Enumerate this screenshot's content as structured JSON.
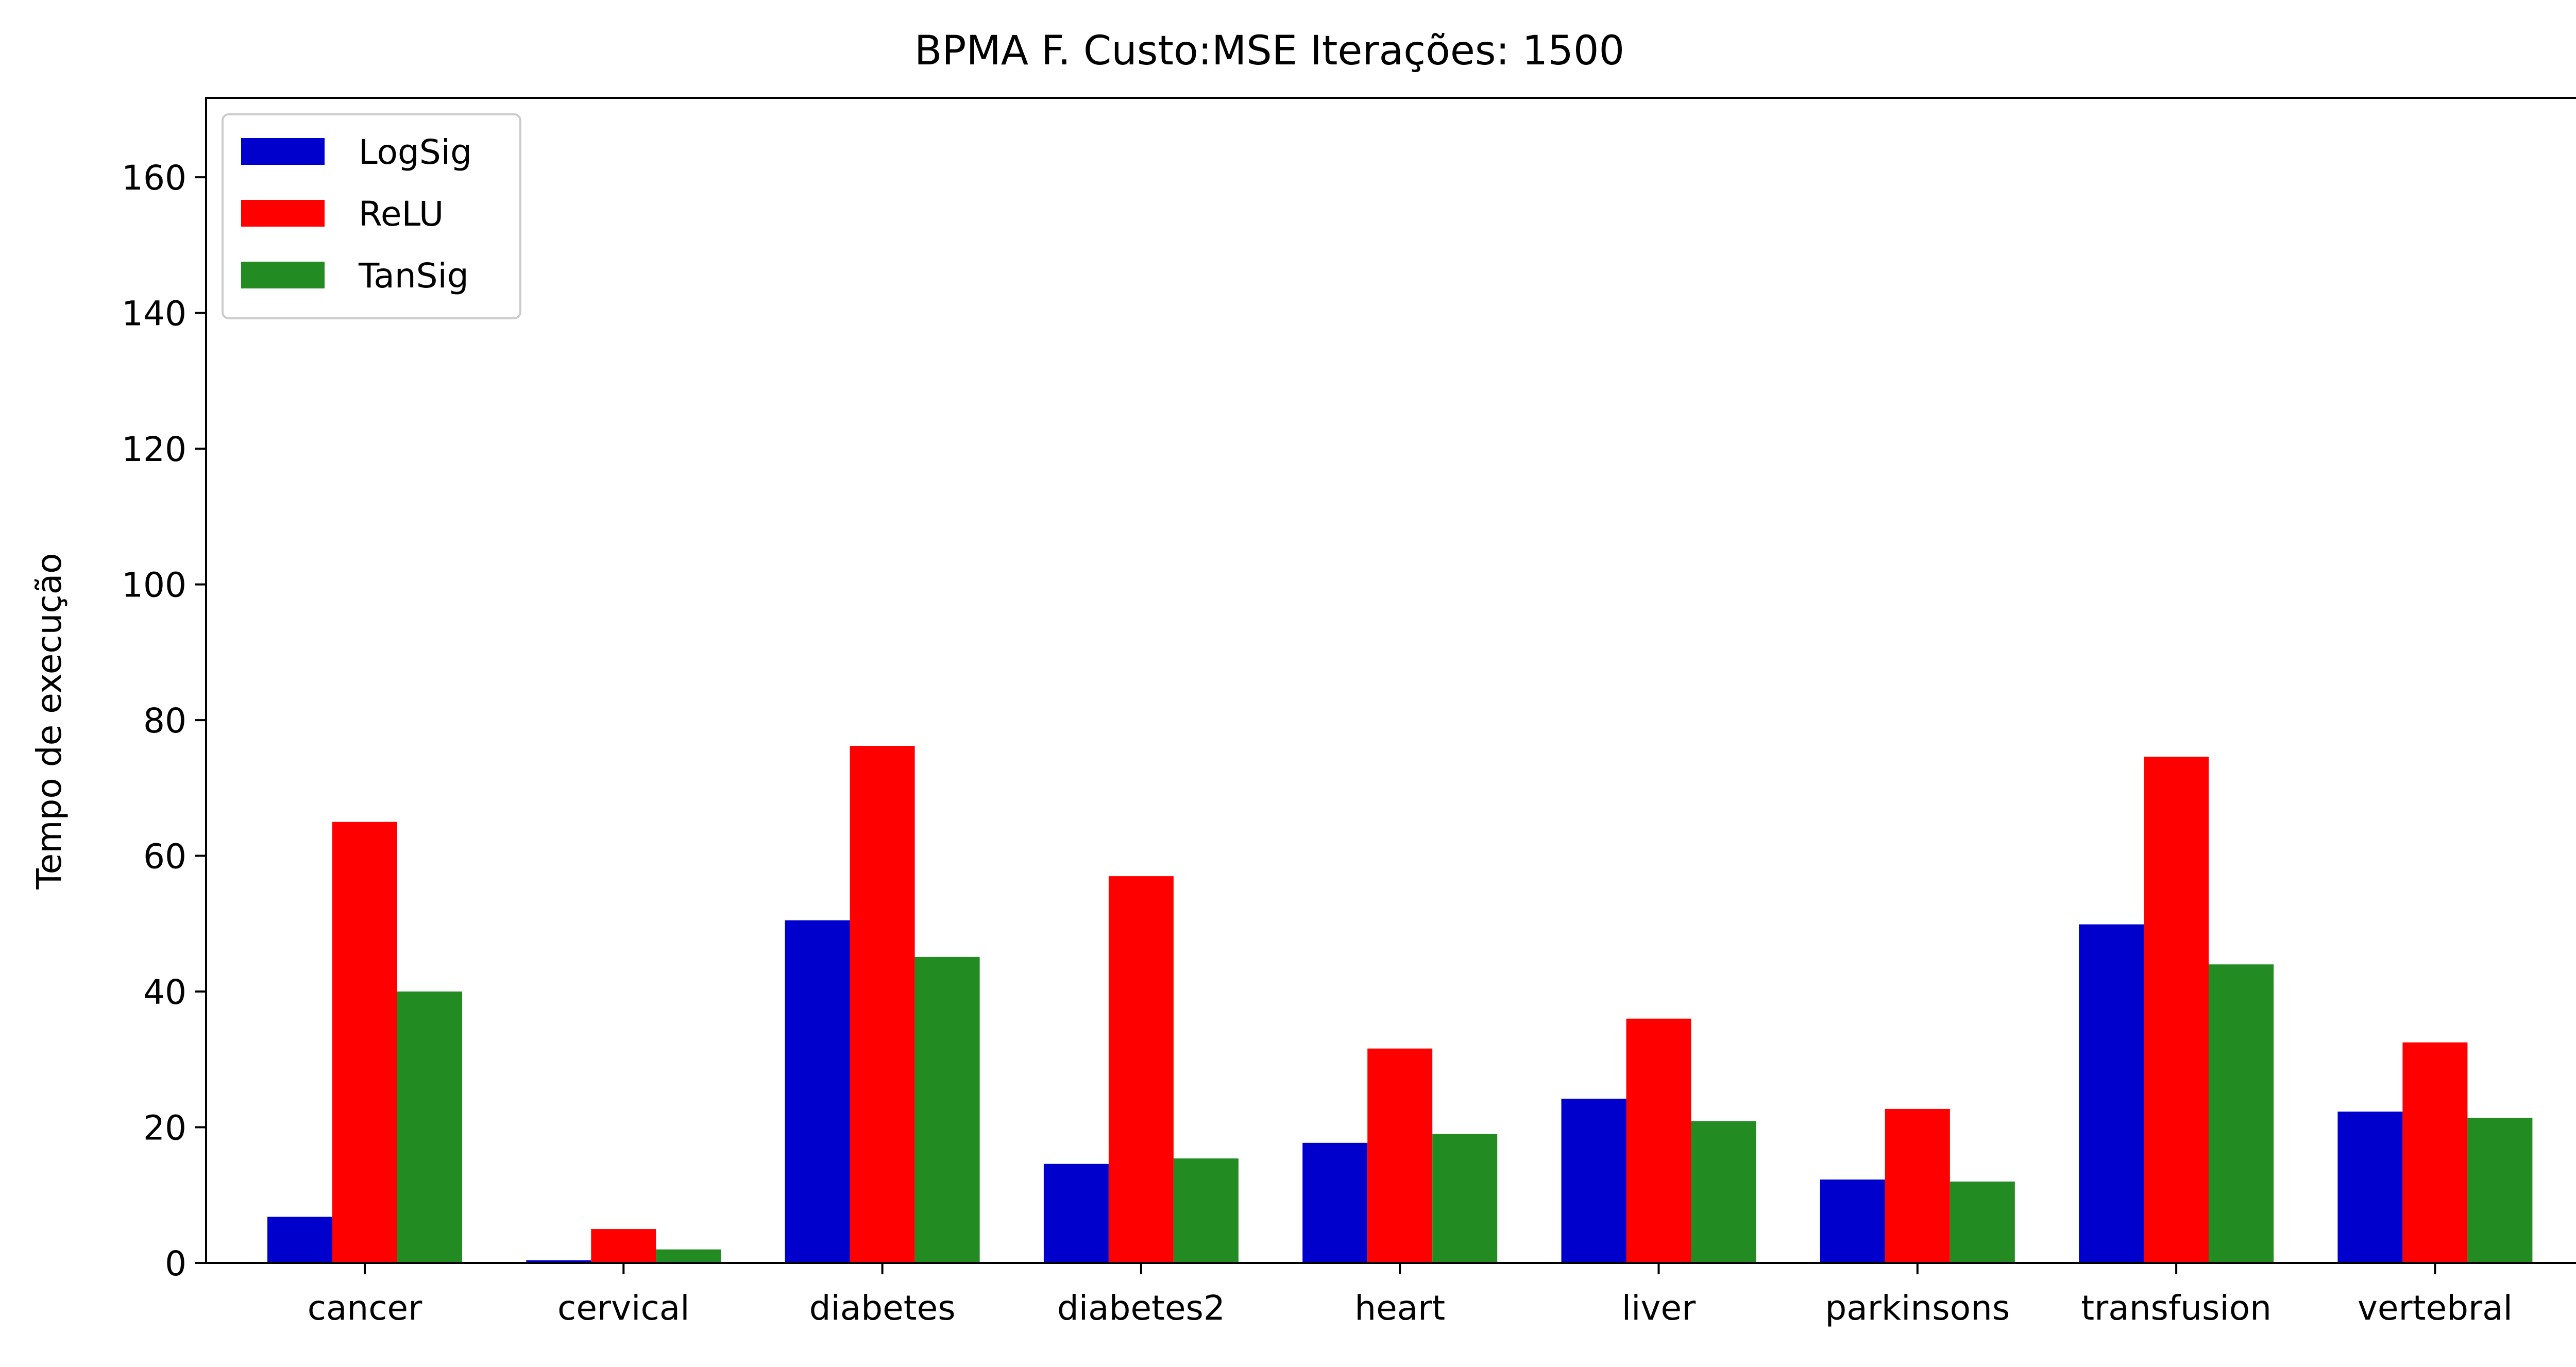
{
  "chart_data": {
    "type": "bar",
    "title": "BPMA F. Custo:MSE Iterações: 1500",
    "xlabel": "",
    "ylabel": "Tempo de execução",
    "categories": [
      "cancer",
      "cervical",
      "diabetes",
      "diabetes2",
      "heart",
      "liver",
      "parkinsons",
      "transfusion",
      "vertebral"
    ],
    "series": [
      {
        "name": "LogSig",
        "color": "#0000cd",
        "values": [
          6.8,
          0.4,
          50.5,
          14.6,
          17.7,
          24.2,
          12.3,
          49.9,
          22.3
        ]
      },
      {
        "name": "ReLU",
        "color": "#ff0000",
        "values": [
          65.0,
          5.0,
          76.2,
          57.0,
          31.6,
          36.0,
          22.7,
          74.6,
          32.5
        ]
      },
      {
        "name": "TanSig",
        "color": "#228b22",
        "values": [
          40.0,
          2.0,
          45.1,
          15.4,
          19.0,
          20.9,
          12.0,
          44.0,
          21.4
        ]
      }
    ],
    "ylim": [
      0,
      171.7
    ],
    "yticks": [
      "0",
      "20",
      "40",
      "60",
      "80",
      "100",
      "120",
      "140",
      "160"
    ],
    "grid": false,
    "legend_position": "top-left"
  }
}
